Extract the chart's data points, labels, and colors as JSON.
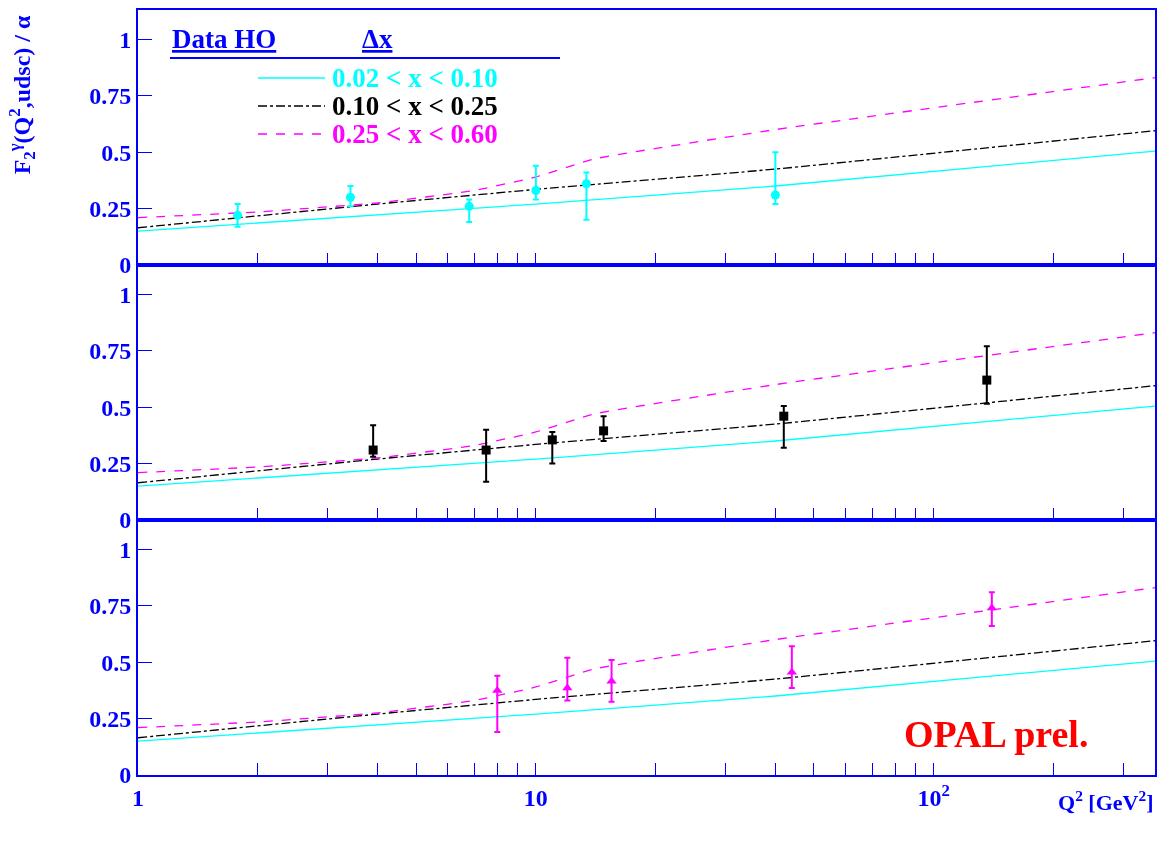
{
  "chart_data": [
    {
      "type": "scatter",
      "ylabel": "F$_{2}$$^{γ}$(Q$^{2}$,udsc) / α",
      "legend_title": [
        "Data HO",
        "Δx"
      ],
      "legend": "top left",
      "log": "x",
      "xlim": [
        1,
        360
      ],
      "ylim": [
        0,
        1.13
      ],
      "tick_labels": "y",
      "xticks": [
        1,
        {
          "value": 2,
          "label": null
        },
        {
          "value": 3,
          "label": null
        },
        {
          "value": 4,
          "label": null
        },
        {
          "value": 5,
          "label": null
        },
        {
          "value": 6,
          "label": null
        },
        {
          "value": 7,
          "label": null
        },
        {
          "value": 8,
          "label": null
        },
        {
          "value": 9,
          "label": null
        },
        10,
        {
          "value": 20,
          "label": null
        },
        {
          "value": 30,
          "label": null
        },
        {
          "value": 40,
          "label": null
        },
        {
          "value": 50,
          "label": null
        },
        {
          "value": 60,
          "label": null
        },
        {
          "value": 70,
          "label": null
        },
        {
          "value": 80,
          "label": null
        },
        {
          "value": 90,
          "label": null
        },
        {
          "value": 100,
          "label": "10$^{2}$"
        },
        {
          "value": 200,
          "label": null
        },
        {
          "value": 300,
          "label": null
        }
      ],
      "yticks": [
        0,
        0.25,
        0.5,
        0.75,
        1
      ],
      "series": [
        {
          "name": "0.02 < x < 0.10",
          "type": "line",
          "line_style": "solid",
          "color": "#00ffff",
          "x": [
            1,
            10,
            40,
            360
          ],
          "values": [
            0.15,
            0.27,
            0.35,
            0.505
          ]
        },
        {
          "name": "0.10 < x < 0.25",
          "type": "line",
          "line_style": "dashdot",
          "color": "#000000",
          "x": [
            1,
            4,
            10,
            40,
            360
          ],
          "values": [
            0.165,
            0.27,
            0.335,
            0.425,
            0.595
          ]
        },
        {
          "name": "0.25 < x < 0.60",
          "type": "line",
          "line_style": "dashed",
          "color": "#ff00ff",
          "x": [
            1,
            2,
            4,
            7,
            10,
            14,
            40,
            360
          ],
          "values": [
            0.21,
            0.235,
            0.275,
            0.33,
            0.39,
            0.47,
            0.6,
            0.83
          ]
        },
        {
          "marker": "circle",
          "color": "#00ffff",
          "x": [
            1.78,
            3.42,
            6.8,
            10,
            13.4,
            40
          ],
          "values": [
            0.22,
            0.3,
            0.26,
            0.33,
            0.36,
            0.31
          ],
          "errors": [
            [
              0.17,
              0.27
            ],
            [
              0.26,
              0.35
            ],
            [
              0.19,
              0.29
            ],
            [
              0.29,
              0.44
            ],
            [
              0.2,
              0.41
            ],
            [
              0.27,
              0.5
            ]
          ]
        }
      ]
    },
    {
      "type": "scatter",
      "log": "x",
      "xlim": [
        1,
        360
      ],
      "ylim": [
        0,
        1.13
      ],
      "tick_labels": "y",
      "xticks": [
        1,
        {
          "value": 2,
          "label": null
        },
        {
          "value": 3,
          "label": null
        },
        {
          "value": 4,
          "label": null
        },
        {
          "value": 5,
          "label": null
        },
        {
          "value": 6,
          "label": null
        },
        {
          "value": 7,
          "label": null
        },
        {
          "value": 8,
          "label": null
        },
        {
          "value": 9,
          "label": null
        },
        10,
        {
          "value": 20,
          "label": null
        },
        {
          "value": 30,
          "label": null
        },
        {
          "value": 40,
          "label": null
        },
        {
          "value": 50,
          "label": null
        },
        {
          "value": 60,
          "label": null
        },
        {
          "value": 70,
          "label": null
        },
        {
          "value": 80,
          "label": null
        },
        {
          "value": 90,
          "label": null
        },
        {
          "value": 100,
          "label": "10$^{2}$"
        },
        {
          "value": 200,
          "label": null
        },
        {
          "value": 300,
          "label": null
        }
      ],
      "yticks": [
        0,
        0.25,
        0.5,
        0.75,
        1
      ],
      "series": [
        {
          "type": "line",
          "line_style": "solid",
          "color": "#00ffff",
          "x": [
            1,
            10,
            40,
            360
          ],
          "values": [
            0.15,
            0.27,
            0.35,
            0.505
          ]
        },
        {
          "type": "line",
          "line_style": "dashdot",
          "color": "#000000",
          "x": [
            1,
            4,
            10,
            40,
            360
          ],
          "values": [
            0.165,
            0.27,
            0.335,
            0.425,
            0.595
          ]
        },
        {
          "type": "line",
          "line_style": "dashed",
          "color": "#ff00ff",
          "x": [
            1,
            2,
            4,
            7,
            10,
            14,
            40,
            360
          ],
          "values": [
            0.21,
            0.235,
            0.275,
            0.33,
            0.39,
            0.47,
            0.6,
            0.83
          ]
        },
        {
          "marker": "square",
          "color": "#000000",
          "x": [
            3.9,
            7.5,
            11,
            14.8,
            42,
            136
          ],
          "values": [
            0.31,
            0.31,
            0.355,
            0.395,
            0.46,
            0.62
          ],
          "errors": [
            [
              0.28,
              0.42
            ],
            [
              0.17,
              0.4
            ],
            [
              0.25,
              0.39
            ],
            [
              0.35,
              0.46
            ],
            [
              0.32,
              0.505
            ],
            [
              0.515,
              0.77
            ]
          ]
        }
      ]
    },
    {
      "type": "scatter",
      "xlabel": "Q$^{2}$ [GeV$^{2}$]",
      "annotations": [
        "OPAL prel."
      ],
      "log": "x",
      "xlim": [
        1,
        360
      ],
      "ylim": [
        0,
        1.13
      ],
      "xticks": [
        1,
        {
          "value": 2,
          "label": null
        },
        {
          "value": 3,
          "label": null
        },
        {
          "value": 4,
          "label": null
        },
        {
          "value": 5,
          "label": null
        },
        {
          "value": 6,
          "label": null
        },
        {
          "value": 7,
          "label": null
        },
        {
          "value": 8,
          "label": null
        },
        {
          "value": 9,
          "label": null
        },
        10,
        {
          "value": 20,
          "label": null
        },
        {
          "value": 30,
          "label": null
        },
        {
          "value": 40,
          "label": null
        },
        {
          "value": 50,
          "label": null
        },
        {
          "value": 60,
          "label": null
        },
        {
          "value": 70,
          "label": null
        },
        {
          "value": 80,
          "label": null
        },
        {
          "value": 90,
          "label": null
        },
        {
          "value": 100,
          "label": "10$^{2}$"
        },
        {
          "value": 200,
          "label": null
        },
        {
          "value": 300,
          "label": null
        }
      ],
      "yticks": [
        0,
        0.25,
        0.5,
        0.75,
        1
      ],
      "series": [
        {
          "type": "line",
          "line_style": "solid",
          "color": "#00ffff",
          "x": [
            1,
            10,
            40,
            360
          ],
          "values": [
            0.15,
            0.27,
            0.35,
            0.505
          ]
        },
        {
          "type": "line",
          "line_style": "dashdot",
          "color": "#000000",
          "x": [
            1,
            4,
            10,
            40,
            360
          ],
          "values": [
            0.165,
            0.27,
            0.335,
            0.425,
            0.595
          ]
        },
        {
          "type": "line",
          "line_style": "dashed",
          "color": "#ff00ff",
          "x": [
            1,
            2,
            4,
            7,
            10,
            14,
            40,
            360
          ],
          "values": [
            0.21,
            0.235,
            0.275,
            0.33,
            0.39,
            0.47,
            0.6,
            0.83
          ]
        },
        {
          "marker": "triangle",
          "color": "#ff00ff",
          "x": [
            8,
            12,
            15.5,
            44,
            140
          ],
          "values": [
            0.375,
            0.385,
            0.415,
            0.455,
            0.74
          ],
          "errors": [
            [
              0.19,
              0.44
            ],
            [
              0.33,
              0.52
            ],
            [
              0.325,
              0.51
            ],
            [
              0.385,
              0.57
            ],
            [
              0.66,
              0.81
            ]
          ]
        }
      ]
    }
  ]
}
